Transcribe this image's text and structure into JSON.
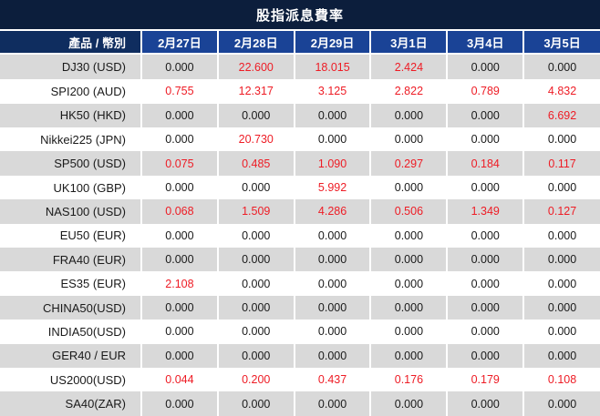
{
  "title": "股指派息費率",
  "colors": {
    "title_bar_bg": "#0c1e3c",
    "header_bg": "#1a4396",
    "product_header_bg": "#0f2d5f",
    "row_alt_bg": "#d9d9d9",
    "row_bg": "#ffffff",
    "value_text": "#1a1a1a",
    "value_highlight": "#ee1c25",
    "header_text": "#ffffff",
    "separator": "#ffffff"
  },
  "table": {
    "product_header": "產品 / 幣別",
    "date_headers": [
      "2月27日",
      "2月28日",
      "2月29日",
      "3月1日",
      "3月4日",
      "3月5日"
    ],
    "rows": [
      {
        "product": "DJ30 (USD)",
        "values": [
          "0.000",
          "22.600",
          "18.015",
          "2.424",
          "0.000",
          "0.000"
        ],
        "red": [
          false,
          true,
          true,
          true,
          false,
          false
        ]
      },
      {
        "product": "SPI200 (AUD)",
        "values": [
          "0.755",
          "12.317",
          "3.125",
          "2.822",
          "0.789",
          "4.832"
        ],
        "red": [
          true,
          true,
          true,
          true,
          true,
          true
        ]
      },
      {
        "product": "HK50 (HKD)",
        "values": [
          "0.000",
          "0.000",
          "0.000",
          "0.000",
          "0.000",
          "6.692"
        ],
        "red": [
          false,
          false,
          false,
          false,
          false,
          true
        ]
      },
      {
        "product": "Nikkei225 (JPN)",
        "values": [
          "0.000",
          "20.730",
          "0.000",
          "0.000",
          "0.000",
          "0.000"
        ],
        "red": [
          false,
          true,
          false,
          false,
          false,
          false
        ]
      },
      {
        "product": "SP500 (USD)",
        "values": [
          "0.075",
          "0.485",
          "1.090",
          "0.297",
          "0.184",
          "0.117"
        ],
        "red": [
          true,
          true,
          true,
          true,
          true,
          true
        ]
      },
      {
        "product": "UK100 (GBP)",
        "values": [
          "0.000",
          "0.000",
          "5.992",
          "0.000",
          "0.000",
          "0.000"
        ],
        "red": [
          false,
          false,
          true,
          false,
          false,
          false
        ]
      },
      {
        "product": "NAS100 (USD)",
        "values": [
          "0.068",
          "1.509",
          "4.286",
          "0.506",
          "1.349",
          "0.127"
        ],
        "red": [
          true,
          true,
          true,
          true,
          true,
          true
        ]
      },
      {
        "product": "EU50 (EUR)",
        "values": [
          "0.000",
          "0.000",
          "0.000",
          "0.000",
          "0.000",
          "0.000"
        ],
        "red": [
          false,
          false,
          false,
          false,
          false,
          false
        ]
      },
      {
        "product": "FRA40 (EUR)",
        "values": [
          "0.000",
          "0.000",
          "0.000",
          "0.000",
          "0.000",
          "0.000"
        ],
        "red": [
          false,
          false,
          false,
          false,
          false,
          false
        ]
      },
      {
        "product": "ES35 (EUR)",
        "values": [
          "2.108",
          "0.000",
          "0.000",
          "0.000",
          "0.000",
          "0.000"
        ],
        "red": [
          true,
          false,
          false,
          false,
          false,
          false
        ]
      },
      {
        "product": "CHINA50(USD)",
        "values": [
          "0.000",
          "0.000",
          "0.000",
          "0.000",
          "0.000",
          "0.000"
        ],
        "red": [
          false,
          false,
          false,
          false,
          false,
          false
        ]
      },
      {
        "product": "INDIA50(USD)",
        "values": [
          "0.000",
          "0.000",
          "0.000",
          "0.000",
          "0.000",
          "0.000"
        ],
        "red": [
          false,
          false,
          false,
          false,
          false,
          false
        ]
      },
      {
        "product": "GER40 / EUR",
        "values": [
          "0.000",
          "0.000",
          "0.000",
          "0.000",
          "0.000",
          "0.000"
        ],
        "red": [
          false,
          false,
          false,
          false,
          false,
          false
        ]
      },
      {
        "product": "US2000(USD)",
        "values": [
          "0.044",
          "0.200",
          "0.437",
          "0.176",
          "0.179",
          "0.108"
        ],
        "red": [
          true,
          true,
          true,
          true,
          true,
          true
        ]
      },
      {
        "product": "SA40(ZAR)",
        "values": [
          "0.000",
          "0.000",
          "0.000",
          "0.000",
          "0.000",
          "0.000"
        ],
        "red": [
          false,
          false,
          false,
          false,
          false,
          false
        ]
      }
    ]
  }
}
